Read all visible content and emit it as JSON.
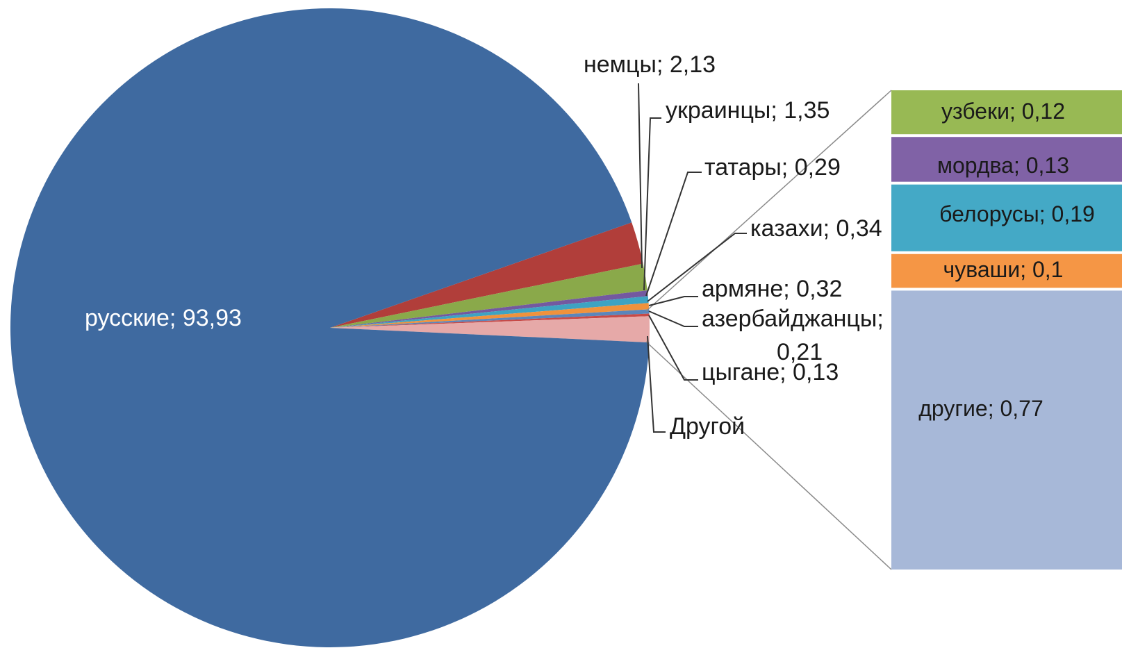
{
  "chart_data": {
    "type": "pie",
    "subtype": "bar-of-pie",
    "title": "",
    "pie_slices": [
      {
        "label": "русские",
        "value": 93.93,
        "display": "русские; 93,93",
        "color": "#3f6aa0"
      },
      {
        "label": "немцы",
        "value": 2.13,
        "display": "немцы; 2,13",
        "color": "#b13e3a"
      },
      {
        "label": "украинцы",
        "value": 1.35,
        "display": "украинцы; 1,35",
        "color": "#8aa94a"
      },
      {
        "label": "татары",
        "value": 0.29,
        "display": "татары; 0,29",
        "color": "#7359a0"
      },
      {
        "label": "казахи",
        "value": 0.34,
        "display": "казахи; 0,34",
        "color": "#3ea3c2"
      },
      {
        "label": "армяне",
        "value": 0.32,
        "display": "армяне; 0,32",
        "color": "#f0923c"
      },
      {
        "label": "азербайджанцы",
        "value": 0.21,
        "display_line1": "азербайджанцы;",
        "display_line2": "0,21",
        "color": "#5b86bb"
      },
      {
        "label": "цыгане",
        "value": 0.13,
        "display": "цыгане; 0,13",
        "color": "#c74a47"
      },
      {
        "label": "Другой",
        "value": 1.31,
        "display": "Другой",
        "color": "#e6a9a8"
      }
    ],
    "bar_segments": [
      {
        "label": "узбеки",
        "value": 0.12,
        "display": "узбеки; 0,12",
        "color": "#98b954"
      },
      {
        "label": "мордва",
        "value": 0.13,
        "display": "мордва; 0,13",
        "color": "#8062a6"
      },
      {
        "label": "белорусы",
        "value": 0.19,
        "display": "белорусы; 0,19",
        "color": "#44a9c6"
      },
      {
        "label": "чуваши",
        "value": 0.1,
        "display": "чуваши; 0,1",
        "color": "#f59645"
      },
      {
        "label": "другие",
        "value": 0.77,
        "display": "другие; 0,77",
        "color": "#a7b8d8"
      }
    ],
    "legend": "none"
  }
}
